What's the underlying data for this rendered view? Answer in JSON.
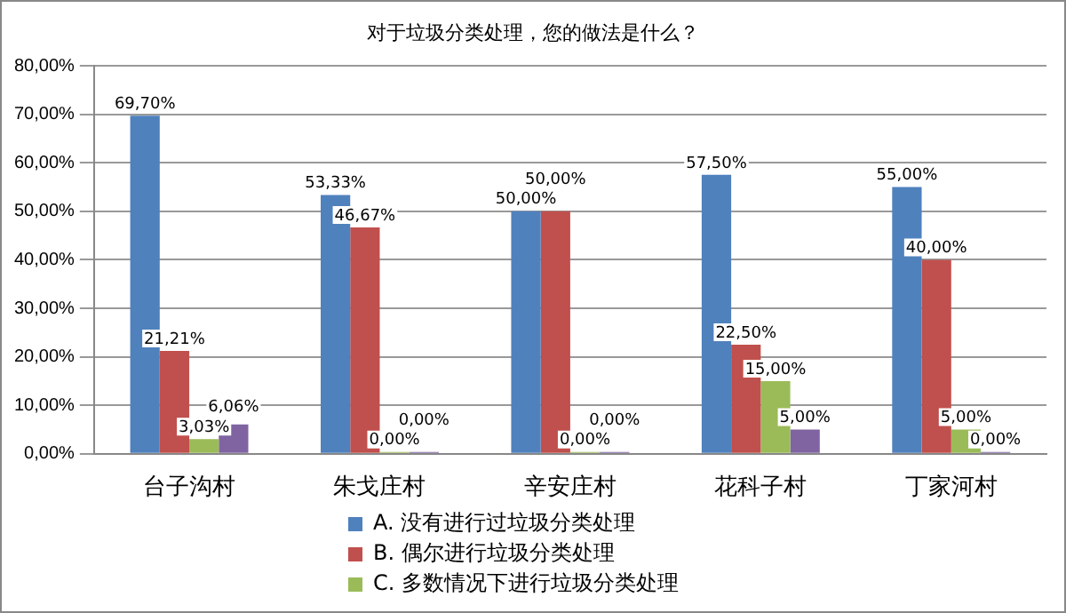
{
  "chart_data": {
    "type": "bar",
    "title": "对于垃圾分类处理，您的做法是什么？",
    "categories": [
      "台子沟村",
      "朱戈庄村",
      "辛安庄村",
      "花科子村",
      "丁家河村"
    ],
    "series": [
      {
        "name": "A. 没有进行过垃圾分类处理",
        "color": "#4f81bd",
        "values": [
          69.7,
          53.33,
          50.0,
          57.5,
          55.0
        ],
        "value_labels": [
          "69,70%",
          "53,33%",
          "50,00%",
          "57,50%",
          "55,00%"
        ]
      },
      {
        "name": "B. 偶尔进行垃圾分类处理",
        "color": "#c0504d",
        "values": [
          21.21,
          46.67,
          50.0,
          22.5,
          40.0
        ],
        "value_labels": [
          "21,21%",
          "46,67%",
          "50,00%",
          "22,50%",
          "40,00%"
        ]
      },
      {
        "name": "C. 多数情况下进行垃圾分类处理",
        "color": "#9bbb59",
        "values": [
          3.03,
          0,
          0,
          15.0,
          5.0
        ],
        "value_labels": [
          "3,03%",
          "0,00%",
          "0,00%",
          "15,00%",
          "5,00%"
        ]
      },
      {
        "color": "#8064a2",
        "values": [
          6.06,
          0,
          0,
          5.0,
          0
        ],
        "value_labels": [
          "6,06%",
          "0,00%",
          "0,00%",
          "5,00%",
          "0,00%"
        ]
      }
    ],
    "ylim": [
      0,
      80
    ],
    "yticks": [
      {
        "value": 0,
        "label": "0,00%"
      },
      {
        "value": 10,
        "label": "10,00%"
      },
      {
        "value": 20,
        "label": "20,00%"
      },
      {
        "value": 30,
        "label": "30,00%"
      },
      {
        "value": 40,
        "label": "40,00%"
      },
      {
        "value": 50,
        "label": "50,00%"
      },
      {
        "value": 60,
        "label": "60,00%"
      },
      {
        "value": 70,
        "label": "70,00%"
      },
      {
        "value": 80,
        "label": "80,00%"
      }
    ],
    "grid": "y",
    "legend": "bottom"
  }
}
